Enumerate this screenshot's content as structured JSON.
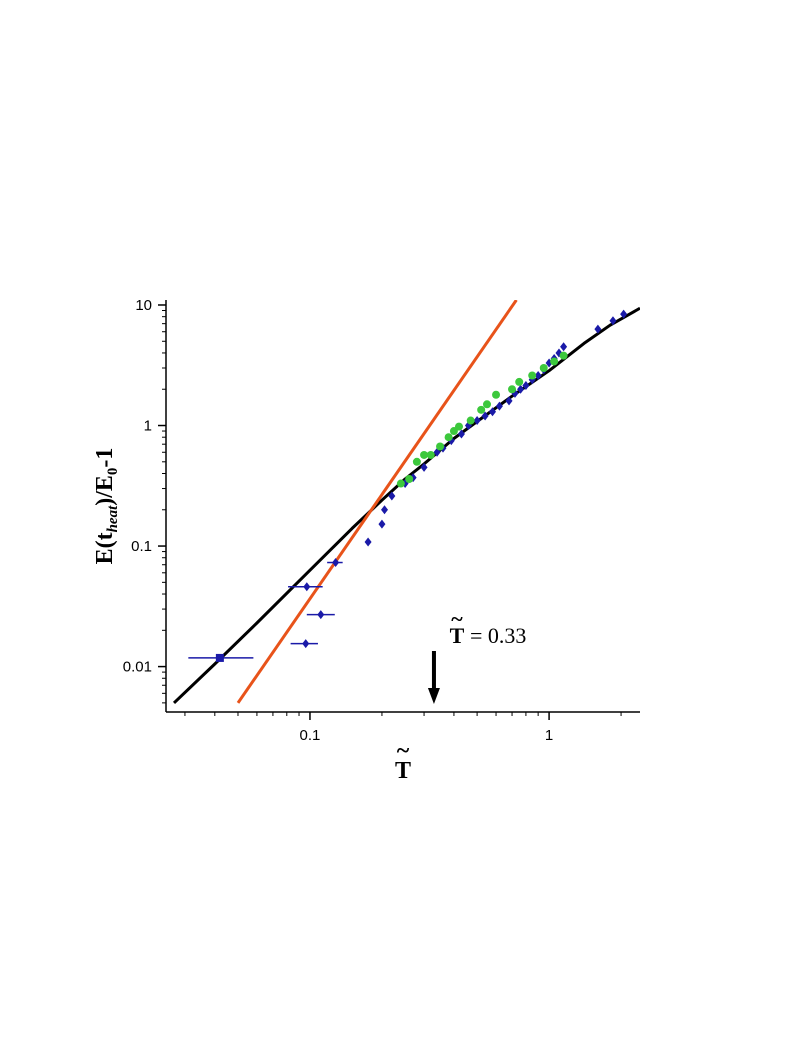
{
  "chart_data": {
    "type": "scatter",
    "xscale": "log",
    "yscale": "log",
    "xlim": [
      0.025,
      2.4
    ],
    "ylim": [
      0.0042,
      11
    ],
    "x_ticks": [
      0.1,
      1
    ],
    "x_tick_labels": [
      "0.1",
      "1"
    ],
    "y_ticks": [
      0.01,
      0.1,
      1,
      10
    ],
    "y_tick_labels": [
      "0.01",
      "0.1",
      "1",
      "10"
    ],
    "xlabel": "T",
    "ylabel_parts": [
      "E(t",
      "heat",
      ")/E",
      "0",
      "-1"
    ],
    "annotation": {
      "text_symbol": "T",
      "text_value": "= 0.33",
      "arrow_x": 0.33
    },
    "colors": {
      "black_curve": "#000000",
      "orange_line": "#e8531a",
      "blue_points": "#1a1aa8",
      "green_points": "#3cc83c"
    },
    "series": [
      {
        "style": "line",
        "color": "black",
        "x": [
          0.027,
          0.04,
          0.06,
          0.1,
          0.15,
          0.2,
          0.25,
          0.3,
          0.4,
          0.5,
          0.7,
          1.0,
          1.4,
          1.8,
          2.4
        ],
        "y": [
          0.005,
          0.0105,
          0.023,
          0.063,
          0.14,
          0.24,
          0.36,
          0.48,
          0.78,
          1.08,
          1.75,
          2.85,
          4.8,
          6.8,
          9.4
        ]
      },
      {
        "style": "line",
        "color": "orange",
        "x": [
          0.05,
          0.73
        ],
        "y": [
          0.005,
          11
        ]
      },
      {
        "style": "points",
        "color": "blue",
        "marker": "square",
        "x": [
          0.042
        ],
        "y": [
          0.0118
        ],
        "xerr_low": [
          0.031
        ],
        "xerr_high": [
          0.058
        ]
      },
      {
        "style": "points",
        "color": "blue",
        "marker": "diamond",
        "x": [
          0.096,
          0.111,
          0.097,
          0.128
        ],
        "y": [
          0.0155,
          0.027,
          0.046,
          0.073
        ],
        "xerr_low": [
          0.083,
          0.097,
          0.081,
          0.118
        ],
        "xerr_high": [
          0.108,
          0.127,
          0.113,
          0.137
        ]
      },
      {
        "style": "points",
        "color": "blue",
        "marker": "diamond",
        "x": [
          0.175,
          0.2,
          0.205,
          0.22,
          0.25,
          0.27,
          0.3,
          0.34,
          0.36,
          0.39,
          0.43,
          0.46,
          0.5,
          0.54,
          0.58,
          0.62,
          0.68,
          0.72,
          0.76,
          0.8,
          0.85,
          0.9,
          0.95,
          1.0,
          1.05,
          1.1,
          1.15,
          1.6,
          1.85,
          2.05
        ],
        "y": [
          0.108,
          0.152,
          0.2,
          0.26,
          0.33,
          0.37,
          0.45,
          0.6,
          0.65,
          0.75,
          0.85,
          1.0,
          1.1,
          1.2,
          1.3,
          1.45,
          1.6,
          1.85,
          2.0,
          2.15,
          2.4,
          2.6,
          2.9,
          3.3,
          3.6,
          4.0,
          4.5,
          6.3,
          7.4,
          8.4
        ]
      },
      {
        "style": "points",
        "color": "green",
        "marker": "circle",
        "x": [
          0.24,
          0.26,
          0.28,
          0.3,
          0.32,
          0.35,
          0.38,
          0.4,
          0.42,
          0.47,
          0.52,
          0.55,
          0.6,
          0.7,
          0.75,
          0.85,
          0.95,
          1.05,
          1.15
        ],
        "y": [
          0.33,
          0.36,
          0.5,
          0.57,
          0.57,
          0.67,
          0.8,
          0.9,
          0.98,
          1.1,
          1.35,
          1.5,
          1.8,
          2.0,
          2.3,
          2.6,
          3.0,
          3.4,
          3.8
        ]
      }
    ]
  }
}
